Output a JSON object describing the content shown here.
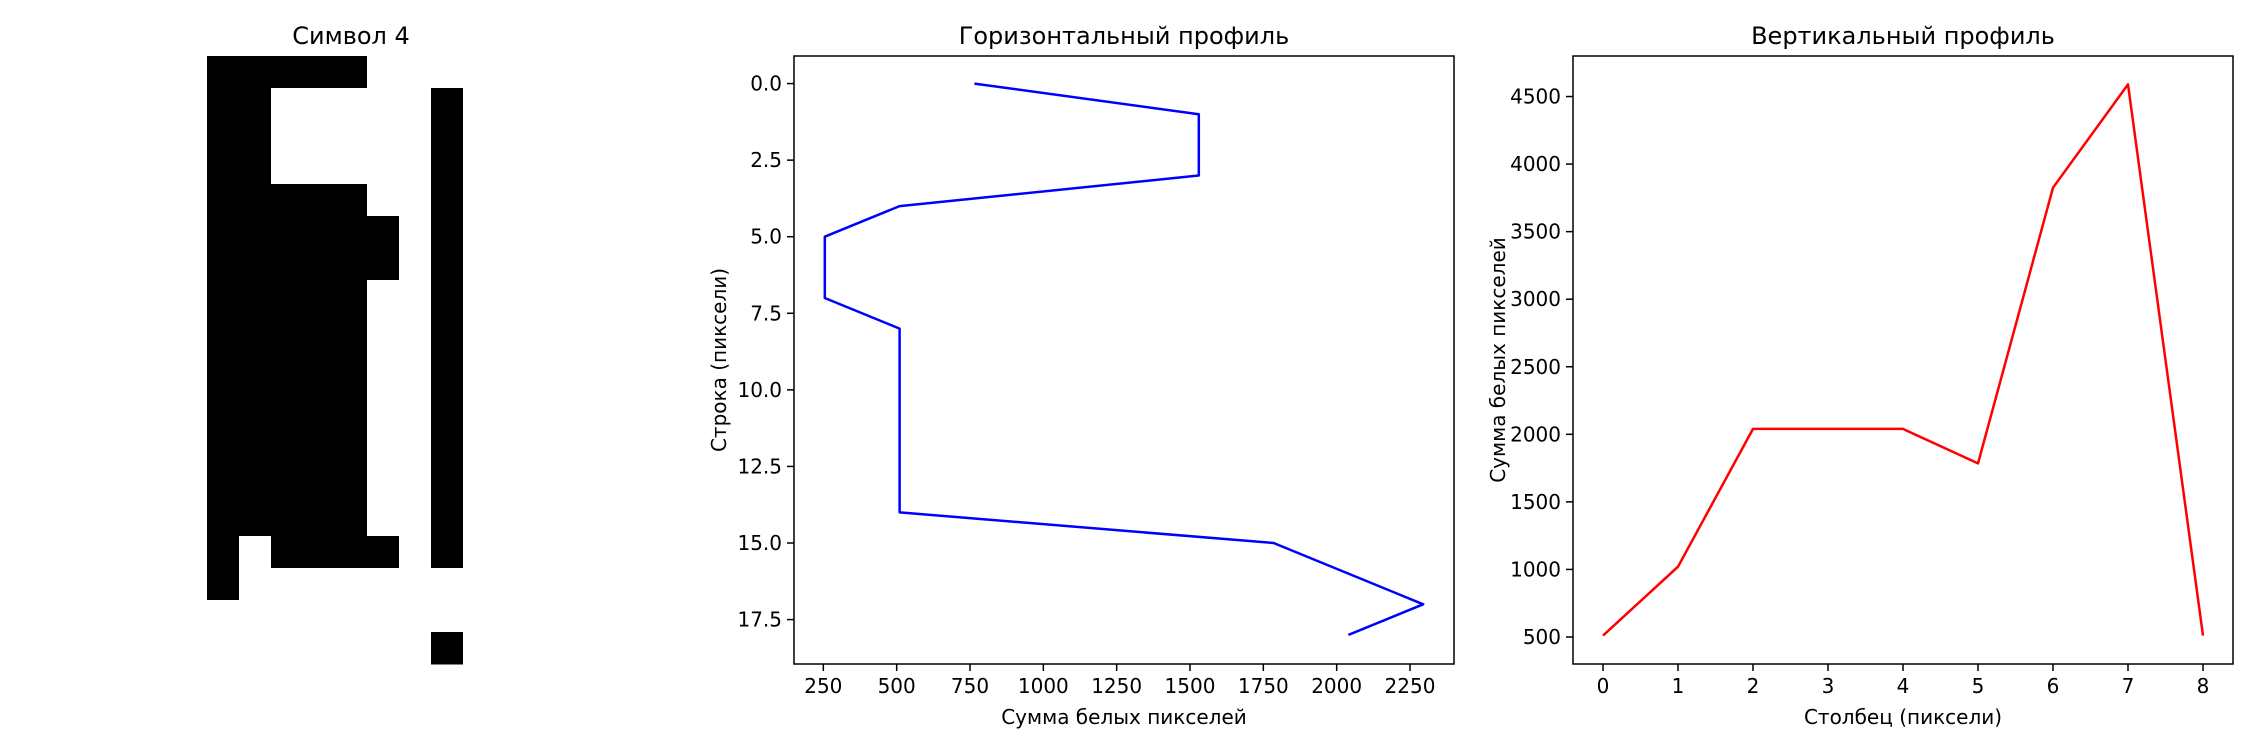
{
  "chart_data": [
    {
      "type": "image",
      "title": "Символ 4",
      "grid_shape": [
        19,
        9
      ],
      "pixels": [
        "000001111",
        "001111101",
        "001111101",
        "001111101",
        "000001101",
        "000000101",
        "000000101",
        "000001101",
        "000001101",
        "000001101",
        "000001101",
        "000001101",
        "000001101",
        "000001101",
        "000001101",
        "010000101",
        "011111111",
        "111111111",
        "111111101"
      ],
      "pixel_legend": {
        "0": "black",
        "1": "white"
      }
    },
    {
      "type": "line",
      "title": "Горизонтальный профиль",
      "xlabel": "Сумма белых пикселей",
      "ylabel": "Строка (пиксели)",
      "xlim": [
        150,
        2400
      ],
      "ylim": [
        18.95,
        -0.9
      ],
      "x_ticks": [
        250,
        500,
        750,
        1000,
        1250,
        1500,
        1750,
        2000,
        2250
      ],
      "y_ticks": [
        0.0,
        2.5,
        5.0,
        7.5,
        10.0,
        12.5,
        15.0,
        17.5
      ],
      "series": [
        {
          "color": "#0000ff",
          "x": [
            765,
            1530,
            1530,
            1530,
            510,
            255,
            255,
            255,
            510,
            510,
            510,
            510,
            510,
            510,
            510,
            1785,
            2040,
            2295,
            2040
          ],
          "y": [
            0,
            1,
            2,
            3,
            4,
            5,
            6,
            7,
            8,
            9,
            10,
            11,
            12,
            13,
            14,
            15,
            16,
            17,
            18
          ]
        }
      ]
    },
    {
      "type": "line",
      "title": "Вертикальный профиль",
      "xlabel": "Столбец (пиксели)",
      "ylabel": "Сумма белых пикселей",
      "xlim": [
        -0.4,
        8.4
      ],
      "ylim": [
        300,
        4800
      ],
      "x_ticks": [
        0,
        1,
        2,
        3,
        4,
        5,
        6,
        7,
        8
      ],
      "y_ticks": [
        500,
        1000,
        1500,
        2000,
        2500,
        3000,
        3500,
        4000,
        4500
      ],
      "series": [
        {
          "color": "#ff0000",
          "x": [
            0,
            1,
            2,
            3,
            4,
            5,
            6,
            7,
            8
          ],
          "y": [
            510,
            1020,
            2040,
            2040,
            2040,
            1785,
            3825,
            4590,
            510
          ]
        }
      ]
    }
  ]
}
